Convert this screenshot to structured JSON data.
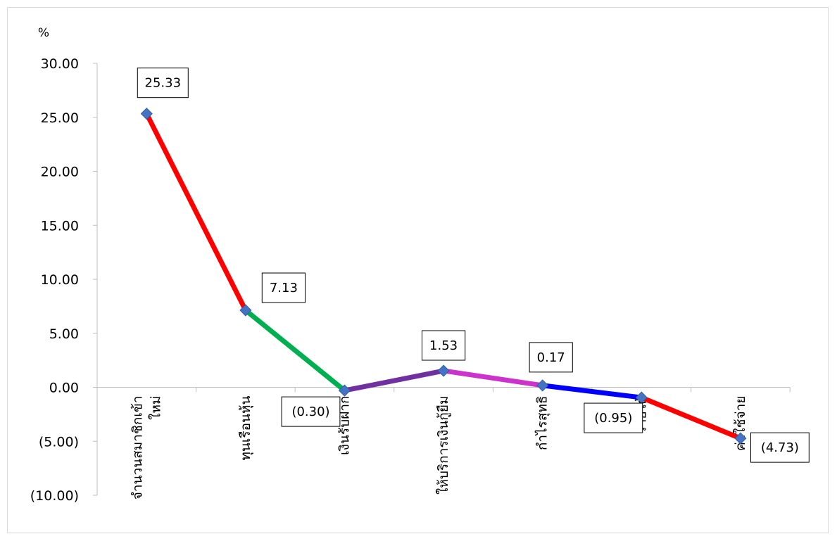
{
  "chart_data": {
    "type": "line",
    "title": "",
    "xlabel": "",
    "ylabel": "%",
    "ylim": [
      -10,
      30
    ],
    "yticks": [
      30,
      25,
      20,
      15,
      10,
      5,
      0,
      -5,
      -10
    ],
    "ytick_labels": [
      "30.00",
      "25.00",
      "20.00",
      "15.00",
      "10.00",
      "5.00",
      "0.00",
      "(5.00)",
      "(10.00)"
    ],
    "categories": [
      "จำนวนสมาชิกเข้าใหม่",
      "ทุนเรือนหุ้น",
      "เงินรับฝาก",
      "ให้บริการเงินกู้ยืม",
      "กำไรสุทธิ",
      "รายได้",
      "ค่าใช้จ่าย"
    ],
    "category_lines": [
      [
        "จำนวนสมาชิกเข้า",
        "ใหม่"
      ],
      [
        "ทุนเรือนหุ้น"
      ],
      [
        "เงินรับฝาก"
      ],
      [
        "ให้บริการเงินกู้ยืม"
      ],
      [
        "กำไรสุทธิ"
      ],
      [
        "รายได้"
      ],
      [
        "ค่าใช้จ่าย"
      ]
    ],
    "series": [
      {
        "values": [
          25.33,
          7.13,
          -0.3,
          1.53,
          0.17,
          -0.95,
          -4.73
        ]
      }
    ],
    "data_labels": [
      "25.33",
      "7.13",
      "(0.30)",
      "1.53",
      "0.17",
      "(0.95)",
      "(4.73)"
    ],
    "segment_colors": [
      "#ff0000",
      "#00b050",
      "#7030a0",
      "#cc33cc",
      "#0000ff",
      "#ff0000"
    ],
    "marker_color": "#4472c4",
    "grid": false,
    "legend": "none"
  }
}
